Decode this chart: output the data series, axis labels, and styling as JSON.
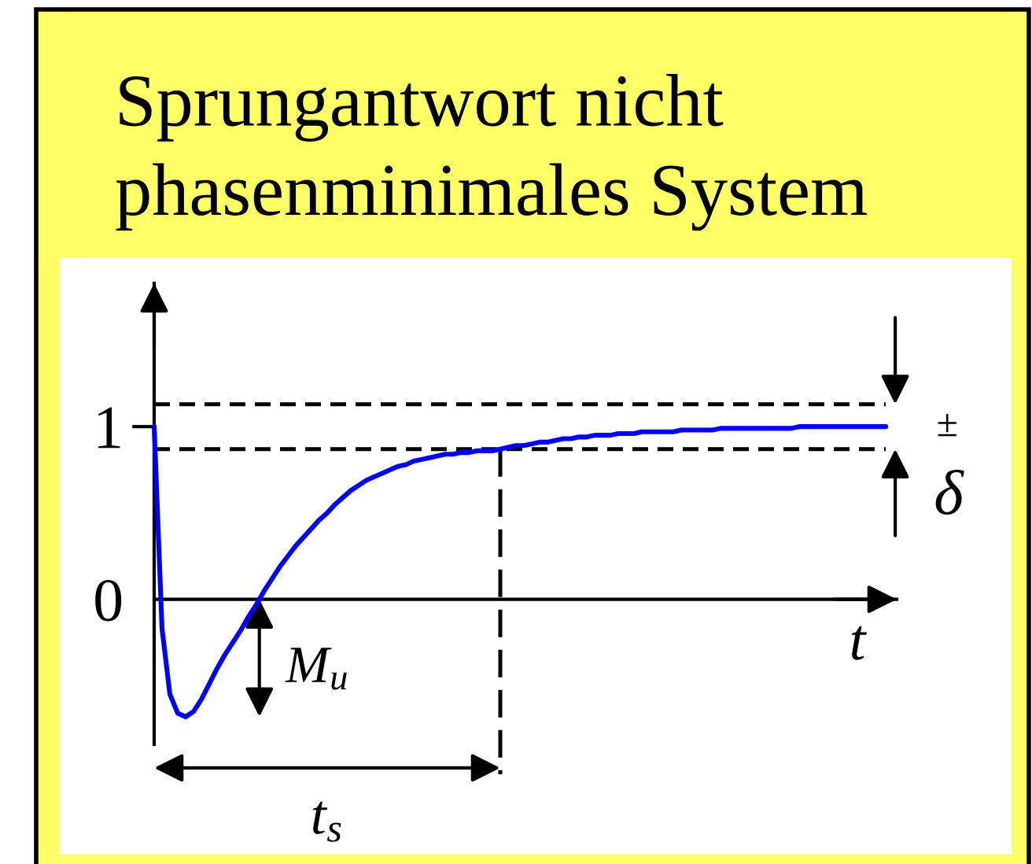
{
  "chart_data": {
    "type": "line",
    "title": "Sprungantwort nicht phasenminimales System",
    "xlabel": "t",
    "categories": [
      null,
      null,
      null,
      null,
      null,
      null,
      null,
      null,
      null,
      null,
      null,
      null,
      null,
      null,
      null,
      null,
      null,
      null,
      null,
      null,
      null,
      null,
      null,
      null,
      null,
      null,
      null,
      null,
      null,
      null,
      null,
      null,
      null,
      null,
      null,
      null,
      null,
      null,
      null,
      null,
      null,
      null,
      null,
      null,
      null,
      null,
      null,
      null,
      null,
      null,
      null,
      null,
      null,
      null,
      null,
      null,
      null,
      null,
      null,
      null,
      null,
      null,
      null,
      null,
      null,
      null,
      null,
      null,
      null,
      null,
      null,
      null,
      null,
      null,
      null,
      null,
      null,
      null,
      null,
      null,
      null,
      null,
      null,
      null,
      null,
      null,
      null,
      null,
      null,
      null,
      null,
      null,
      null,
      null
    ],
    "series": [
      {
        "color": "#0000ff",
        "values": [
          1.0,
          -0.17,
          -0.55,
          -0.66,
          -0.68,
          -0.65,
          -0.58,
          -0.49,
          -0.4,
          -0.32,
          -0.25,
          -0.18,
          -0.1,
          -0.03,
          0.05,
          0.12,
          0.19,
          0.25,
          0.31,
          0.36,
          0.41,
          0.46,
          0.5,
          0.55,
          0.59,
          0.63,
          0.66,
          0.69,
          0.71,
          0.73,
          0.75,
          0.77,
          0.78,
          0.8,
          0.81,
          0.82,
          0.83,
          0.84,
          0.84,
          0.85,
          0.85,
          0.86,
          0.86,
          0.86,
          0.87,
          0.88,
          0.89,
          0.89,
          0.9,
          0.91,
          0.91,
          0.92,
          0.93,
          0.93,
          0.94,
          0.94,
          0.95,
          0.95,
          0.95,
          0.96,
          0.96,
          0.96,
          0.97,
          0.97,
          0.97,
          0.97,
          0.97,
          0.98,
          0.98,
          0.98,
          0.98,
          0.98,
          0.99,
          0.99,
          0.99,
          0.99,
          0.99,
          0.99,
          0.99,
          0.99,
          0.99,
          0.99,
          1.0,
          1.0,
          1.0,
          1.0,
          1.0,
          1.0,
          1.0,
          1.0,
          1.0,
          1.0,
          1.0,
          1.0
        ]
      }
    ],
    "ylim": [
      -0.84,
      1.83
    ],
    "yticks": [
      0,
      1
    ],
    "ref_lines": [
      {
        "axis": "y",
        "value": 1.13,
        "color": "#000000",
        "line_style": "dashed"
      },
      {
        "axis": "y",
        "value": 0.87,
        "color": "#000000",
        "line_style": "dashed"
      }
    ],
    "annotations": [
      "M$_{u}$",
      "t$_{s}$",
      "±",
      "δ"
    ]
  }
}
